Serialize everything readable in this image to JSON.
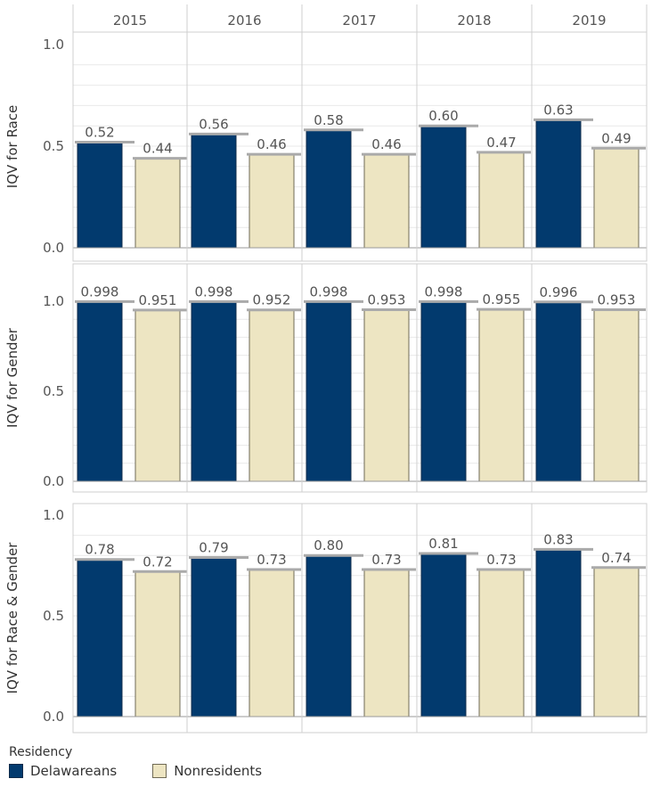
{
  "colors": {
    "delawareans": "#023a6e",
    "nonresidents": "#ede5c2",
    "grid": "#e9e9e9",
    "border": "#cfcfcf",
    "text": "#555555"
  },
  "legend": {
    "title": "Residency",
    "items": [
      {
        "label": "Delawareans",
        "color": "#023a6e"
      },
      {
        "label": "Nonresidents",
        "color": "#ede5c2"
      }
    ]
  },
  "chart_data": {
    "type": "bar",
    "columns": [
      "2015",
      "2016",
      "2017",
      "2018",
      "2019"
    ],
    "series_names": [
      "Delawareans",
      "Nonresidents"
    ],
    "ylim": [
      0,
      1
    ],
    "yticks": [
      "0.0",
      "0.5",
      "1.0"
    ],
    "legend_position": "bottom-left",
    "panels": [
      {
        "ylabel": "IQV for Race",
        "delawareans": [
          0.52,
          0.56,
          0.58,
          0.6,
          0.63
        ],
        "nonresidents": [
          0.44,
          0.46,
          0.46,
          0.47,
          0.49
        ],
        "delawareans_labels": [
          "0.52",
          "0.56",
          "0.58",
          "0.60",
          "0.63"
        ],
        "nonresidents_labels": [
          "0.44",
          "0.46",
          "0.46",
          "0.47",
          "0.49"
        ]
      },
      {
        "ylabel": "IQV for Gender",
        "delawareans": [
          0.998,
          0.998,
          0.998,
          0.998,
          0.996
        ],
        "nonresidents": [
          0.951,
          0.952,
          0.953,
          0.955,
          0.953
        ],
        "delawareans_labels": [
          "0.998",
          "0.998",
          "0.998",
          "0.998",
          "0.996"
        ],
        "nonresidents_labels": [
          "0.951",
          "0.952",
          "0.953",
          "0.955",
          "0.953"
        ]
      },
      {
        "ylabel": "IQV for Race & Gender",
        "delawareans": [
          0.78,
          0.79,
          0.8,
          0.81,
          0.83
        ],
        "nonresidents": [
          0.72,
          0.73,
          0.73,
          0.73,
          0.74
        ],
        "delawareans_labels": [
          "0.78",
          "0.79",
          "0.80",
          "0.81",
          "0.83"
        ],
        "nonresidents_labels": [
          "0.72",
          "0.73",
          "0.73",
          "0.73",
          "0.74"
        ]
      }
    ]
  }
}
